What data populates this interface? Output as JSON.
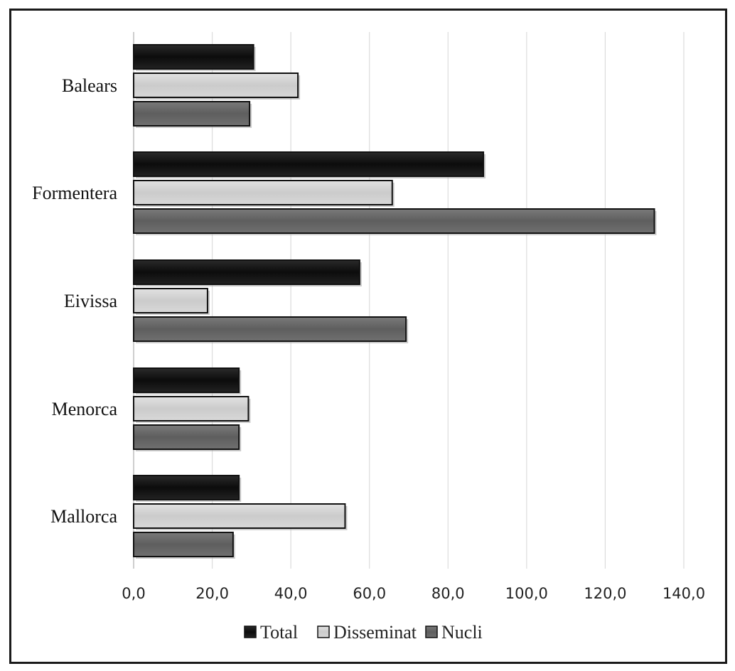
{
  "chart_data": {
    "type": "bar",
    "orientation": "horizontal",
    "title": "",
    "xlabel": "",
    "ylabel": "",
    "categories": [
      "Balears",
      "Formentera",
      "Eivissa",
      "Menorca",
      "Mallorca"
    ],
    "series": [
      {
        "name": "Total",
        "color": "#161616",
        "values": [
          30.5,
          89.0,
          57.5,
          26.8,
          26.8
        ]
      },
      {
        "name": "Disseminat",
        "color": "#d0d0d0",
        "values": [
          41.8,
          65.8,
          18.8,
          29.2,
          53.8
        ]
      },
      {
        "name": "Nucli",
        "color": "#6a6a6a",
        "values": [
          29.5,
          132.5,
          69.3,
          26.8,
          25.3
        ]
      }
    ],
    "xlim": [
      0,
      140
    ],
    "xticks": [
      "0,0",
      "20,0",
      "40,0",
      "60,0",
      "80,0",
      "100,0",
      "120,0",
      "140,0"
    ],
    "grid": "vertical",
    "legend_position": "bottom"
  }
}
